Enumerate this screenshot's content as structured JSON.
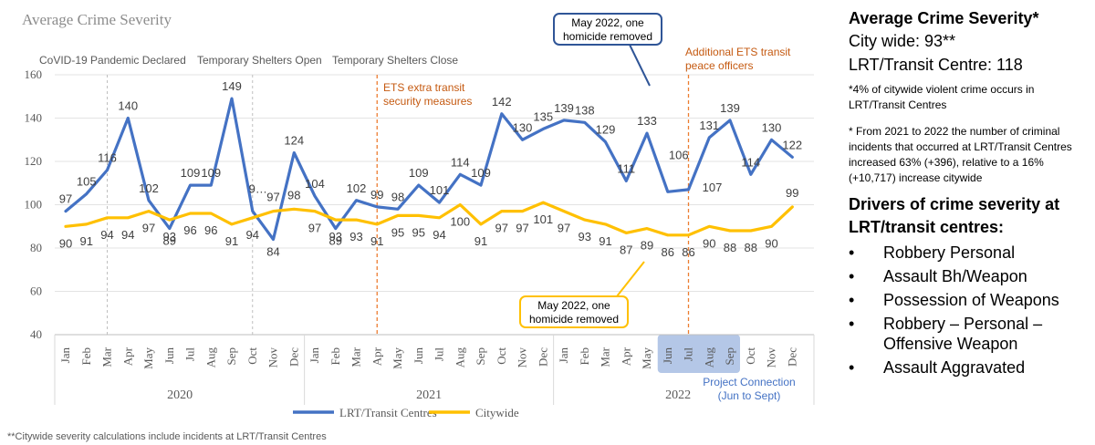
{
  "chart_data": {
    "type": "line",
    "title": "Average Crime Severity",
    "ylim": [
      40,
      160
    ],
    "yticks": [
      40,
      60,
      80,
      100,
      120,
      140,
      160
    ],
    "months": [
      "Jan",
      "Feb",
      "Mar",
      "Apr",
      "May",
      "Jun",
      "Jul",
      "Aug",
      "Sep",
      "Oct",
      "Nov",
      "Dec",
      "Jan",
      "Feb",
      "Mar",
      "Apr",
      "May",
      "Jun",
      "Jul",
      "Aug",
      "Sep",
      "Oct",
      "Nov",
      "Dec",
      "Jan",
      "Feb",
      "Mar",
      "Apr",
      "May",
      "Jun",
      "Jul",
      "Aug",
      "Sep",
      "Oct",
      "Nov",
      "Dec"
    ],
    "years": [
      "2020",
      "2021",
      "2022"
    ],
    "series": [
      {
        "name": "LRT/Transit Centres",
        "color": "#4472c4",
        "values": [
          97,
          105,
          116,
          140,
          102,
          89,
          109,
          109,
          149,
          97,
          84,
          124,
          104,
          89,
          102,
          99,
          98,
          109,
          101,
          114,
          109,
          142,
          130,
          135,
          139,
          138,
          129,
          111,
          133,
          106,
          107,
          131,
          139,
          114,
          130,
          122
        ],
        "labels": [
          "97",
          "105",
          "116",
          "140",
          "102",
          "89",
          "109",
          "109",
          "149",
          "9…",
          "84",
          "124",
          "104",
          "89",
          "102",
          "99",
          "98",
          "109",
          "101",
          "114",
          "109",
          "142",
          "130",
          "135",
          "139",
          "138",
          "129",
          "111",
          "133",
          "106",
          "107",
          "131",
          "139",
          "114",
          "130",
          "122"
        ]
      },
      {
        "name": "Citywide",
        "color": "#ffc000",
        "values": [
          90,
          91,
          94,
          94,
          97,
          93,
          96,
          96,
          91,
          94,
          97,
          98,
          97,
          93,
          93,
          91,
          95,
          95,
          94,
          100,
          91,
          97,
          97,
          101,
          97,
          93,
          91,
          87,
          89,
          86,
          86,
          90,
          88,
          88,
          90,
          99
        ],
        "labels": [
          "90",
          "91",
          "94",
          "94",
          "97",
          "93",
          "96",
          "96",
          "91",
          "94",
          "97",
          "98",
          "97",
          "93",
          "93",
          "91",
          "95",
          "95",
          "94",
          "100",
          "91",
          "97",
          "97",
          "101",
          "97",
          "93",
          "91",
          "87",
          "89",
          "86",
          "86",
          "90",
          "88",
          "88",
          "90",
          "99"
        ]
      }
    ],
    "events": [
      {
        "text": "CoVID-19 Pandemic Declared"
      },
      {
        "text": "Temporary Shelters Open"
      },
      {
        "text": "Temporary Shelters Close"
      }
    ],
    "orange_notes": [
      {
        "lines": [
          "ETS extra transit",
          "security measures"
        ]
      },
      {
        "lines": [
          "Additional ETS transit",
          "peace officers"
        ]
      }
    ],
    "callouts": [
      {
        "lines": [
          "May 2022, one",
          "homicide removed"
        ],
        "border": "#2f5597"
      },
      {
        "lines": [
          "May 2022, one",
          "homicide removed"
        ],
        "border": "#ffc000"
      }
    ],
    "project_connection": {
      "lines": [
        "Project Connection",
        "(Jun to Sept)"
      ],
      "color": "#b4c7e7"
    },
    "footnote": "**Citywide severity calculations include incidents at LRT/Transit Centres",
    "legend_position": "bottom"
  },
  "side_panel": {
    "title": "Average Crime Severity*",
    "city_wide": "City wide: 93**",
    "lrt": "LRT/Transit Centre: 118",
    "note1": "*4%  of citywide violent crime occurs in LRT/Transit Centres",
    "note2": "* From 2021 to 2022 the number of criminal incidents that occurred at LRT/Transit Centres increased 63% (+396), relative to a 16% (+10,717) increase citywide",
    "drivers_title": "Drivers of crime severity at LRT/transit centres:",
    "bullet": "•",
    "drivers": [
      "Robbery Personal",
      "Assault Bh/Weapon",
      "Possession of Weapons",
      "Robbery – Personal – Offensive Weapon",
      "Assault Aggravated"
    ]
  }
}
